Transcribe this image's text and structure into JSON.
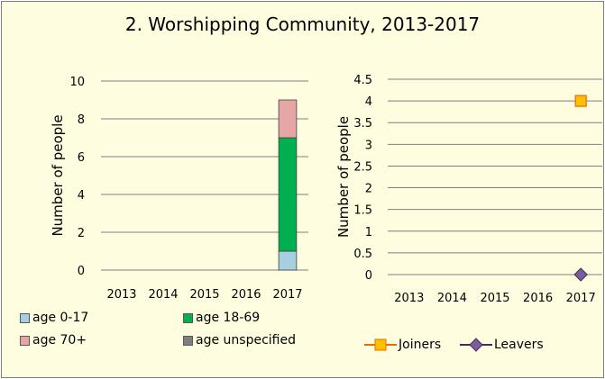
{
  "title": "2. Worshipping Community, 2013-2017",
  "chart_data": [
    {
      "type": "bar",
      "stacked": true,
      "categories": [
        "2013",
        "2014",
        "2015",
        "2016",
        "2017"
      ],
      "ylabel": "Number of people",
      "ylim": [
        0,
        10
      ],
      "yticks": [
        "0",
        "2",
        "4",
        "6",
        "8",
        "10"
      ],
      "grid": true,
      "legend_position": "bottom",
      "series": [
        {
          "name": "age 0-17",
          "color": "#a6cfe0",
          "values": [
            0,
            0,
            0,
            0,
            1
          ]
        },
        {
          "name": "age 18-69",
          "color": "#00b050",
          "values": [
            0,
            0,
            0,
            0,
            6
          ]
        },
        {
          "name": "age 70+",
          "color": "#e6a6a6",
          "values": [
            0,
            0,
            0,
            0,
            2
          ]
        },
        {
          "name": "age unspecified",
          "color": "#7f7f7f",
          "values": [
            0,
            0,
            0,
            0,
            0
          ]
        }
      ]
    },
    {
      "type": "line",
      "categories": [
        "2013",
        "2014",
        "2015",
        "2016",
        "2017"
      ],
      "ylabel": "Number of people",
      "ylim": [
        0,
        4.5
      ],
      "yticks": [
        "0",
        "0.5",
        "1",
        "1.5",
        "2",
        "2.5",
        "3",
        "3.5",
        "4",
        "4.5"
      ],
      "grid": true,
      "legend_position": "bottom",
      "series": [
        {
          "name": "Joiners",
          "color": "#ffc000",
          "edge": "#e46c0a",
          "marker": "square",
          "values": [
            null,
            null,
            null,
            null,
            4
          ]
        },
        {
          "name": "Leavers",
          "color": "#7b5c9e",
          "edge": "#403152",
          "marker": "diamond",
          "values": [
            null,
            null,
            null,
            null,
            0
          ]
        }
      ]
    }
  ]
}
